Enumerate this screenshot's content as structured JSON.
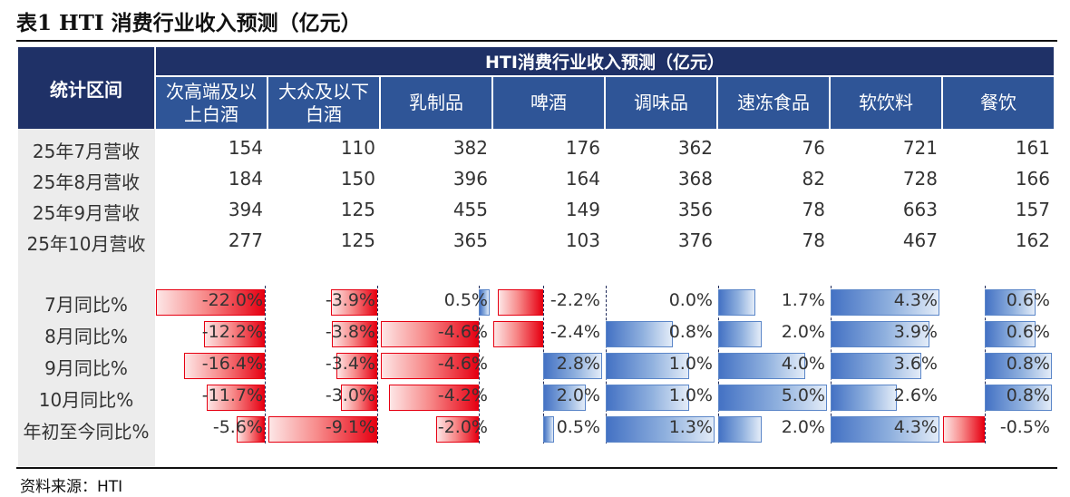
{
  "title": "表1  HTI 消费行业收入预测（亿元）",
  "header": {
    "stub": "统计区间",
    "group": "HTI消费行业收入预测（亿元）",
    "columns": [
      {
        "line1": "次高端及以",
        "line2": "上白酒"
      },
      {
        "line1": "大众及以下",
        "line2": "白酒"
      },
      {
        "line1": "乳制品",
        "line2": ""
      },
      {
        "line1": "啤酒",
        "line2": ""
      },
      {
        "line1": "调味品",
        "line2": ""
      },
      {
        "line1": "速冻食品",
        "line2": ""
      },
      {
        "line1": "软饮料",
        "line2": ""
      },
      {
        "line1": "餐饮",
        "line2": ""
      }
    ]
  },
  "revenue_rows": [
    {
      "label": "25年7月营收",
      "values": [
        "154",
        "110",
        "382",
        "176",
        "362",
        "76",
        "721",
        "161"
      ]
    },
    {
      "label": "25年8月营收",
      "values": [
        "184",
        "150",
        "396",
        "164",
        "368",
        "82",
        "728",
        "166"
      ]
    },
    {
      "label": "25年9月营收",
      "values": [
        "394",
        "125",
        "455",
        "149",
        "356",
        "78",
        "663",
        "157"
      ]
    },
    {
      "label": "25年10月营收",
      "values": [
        "277",
        "125",
        "365",
        "103",
        "376",
        "78",
        "467",
        "162"
      ]
    }
  ],
  "growth_rows": [
    {
      "label": "7月同比%",
      "text": [
        "-22.0%",
        "-3.9%",
        "0.5%",
        "-2.2%",
        "0.0%",
        "1.7%",
        "4.3%",
        "0.6%"
      ],
      "values": [
        -22.0,
        -3.9,
        0.5,
        -2.2,
        0.0,
        1.7,
        4.3,
        0.6
      ]
    },
    {
      "label": "8月同比%",
      "text": [
        "-12.2%",
        "-3.8%",
        "-4.6%",
        "-2.4%",
        "0.8%",
        "2.0%",
        "3.9%",
        "0.6%"
      ],
      "values": [
        -12.2,
        -3.8,
        -4.6,
        -2.4,
        0.8,
        2.0,
        3.9,
        0.6
      ]
    },
    {
      "label": "9月同比%",
      "text": [
        "-16.4%",
        "-3.4%",
        "-4.6%",
        "2.8%",
        "1.0%",
        "4.0%",
        "3.6%",
        "0.8%"
      ],
      "values": [
        -16.4,
        -3.4,
        -4.6,
        2.8,
        1.0,
        4.0,
        3.6,
        0.8
      ]
    },
    {
      "label": "10月同比%",
      "text": [
        "-11.7%",
        "-3.0%",
        "-4.2%",
        "2.0%",
        "1.0%",
        "5.0%",
        "2.6%",
        "0.8%"
      ],
      "values": [
        -11.7,
        -3.0,
        -4.2,
        2.0,
        1.0,
        5.0,
        2.6,
        0.8
      ]
    },
    {
      "label": "年初至今同比%",
      "text": [
        "-5.6%",
        "-9.1%",
        "-2.0%",
        "0.5%",
        "1.3%",
        "2.0%",
        "4.3%",
        "-0.5%"
      ],
      "values": [
        -5.6,
        -9.1,
        -2.0,
        0.5,
        1.3,
        2.0,
        4.3,
        -0.5
      ]
    }
  ],
  "source": "资料来源：HTI",
  "colors": {
    "header_dark": "#1f3167",
    "header": "#2f5597",
    "negative_bar": "#e60012",
    "positive_bar": "#4472c4"
  }
}
